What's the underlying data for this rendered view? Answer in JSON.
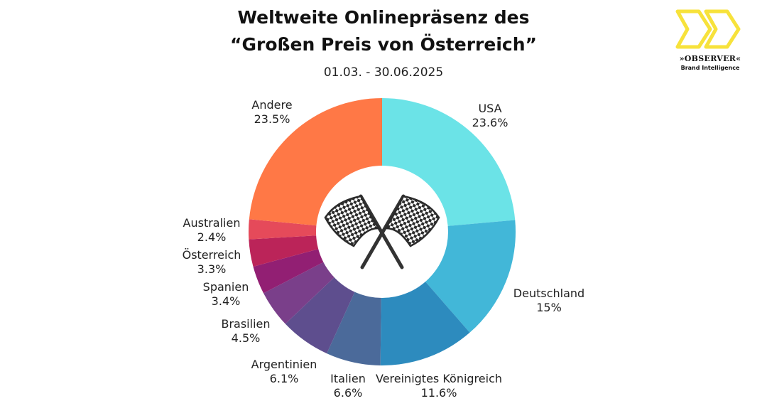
{
  "header": {
    "title_line1": "Weltweite Onlinepräsenz des",
    "title_line2": "“Großen Preis von Österreich”",
    "subtitle": "01.03. - 30.06.2025"
  },
  "logo": {
    "brand": "»OBSERVER«",
    "tagline": "Brand Intelligence",
    "accent": "#F7E23B"
  },
  "center_icon": "crossed-checkered-flags-icon",
  "chart_data": {
    "type": "pie",
    "donut": true,
    "legend": "none",
    "slices": [
      {
        "label": "USA",
        "value": 23.6,
        "display": "23.6%",
        "color": "#6BE3E7"
      },
      {
        "label": "Deutschland",
        "value": 15,
        "display": "15%",
        "color": "#42B7D8"
      },
      {
        "label": "Vereinigtes Königreich",
        "value": 11.6,
        "display": "11.6%",
        "color": "#2D8BBE"
      },
      {
        "label": "Italien",
        "value": 6.6,
        "display": "6.6%",
        "color": "#4B6A9A"
      },
      {
        "label": "Argentinien",
        "value": 6.1,
        "display": "6.1%",
        "color": "#5E4E8E"
      },
      {
        "label": "Brasilien",
        "value": 4.5,
        "display": "4.5%",
        "color": "#7A3F8A"
      },
      {
        "label": "Spanien",
        "value": 3.4,
        "display": "3.4%",
        "color": "#921F73"
      },
      {
        "label": "Österreich",
        "value": 3.3,
        "display": "3.3%",
        "color": "#BB2459"
      },
      {
        "label": "Australien",
        "value": 2.4,
        "display": "2.4%",
        "color": "#E54A5A"
      },
      {
        "label": "Andere",
        "value": 23.5,
        "display": "23.5%",
        "color": "#FF7846"
      }
    ]
  }
}
